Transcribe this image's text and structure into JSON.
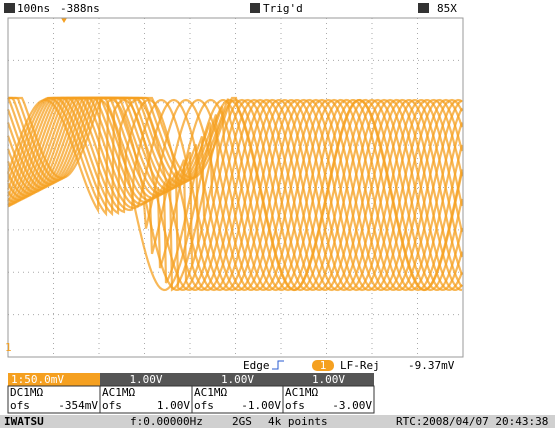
{
  "header": {
    "timebase": "100ns",
    "delay": "-388ns",
    "trigger_status": "Trig'd",
    "zoom": "85X"
  },
  "ground_marker": "1",
  "trigger": {
    "type": "Edge",
    "channel": "1",
    "coupling": "LF-Rej",
    "level": "-9.37mV"
  },
  "channels": [
    {
      "scale": "1:50.0mV",
      "coupling": "DC1MΩ",
      "offset_label": "ofs",
      "offset": "-354mV"
    },
    {
      "scale": "1.00V",
      "coupling": "AC1MΩ",
      "offset_label": "ofs",
      "offset": "1.00V"
    },
    {
      "scale": "1.00V",
      "coupling": "AC1MΩ",
      "offset_label": "ofs",
      "offset": "-1.00V"
    },
    {
      "scale": "1.00V",
      "coupling": "AC1MΩ",
      "offset_label": "ofs",
      "offset": "-3.00V"
    }
  ],
  "status": {
    "brand": "IWATSU",
    "frequency": "f:0.00000Hz",
    "sample_rate": "2GS",
    "record": "4k points",
    "rtc": "RTC:2008/04/07 20:43:38"
  }
}
